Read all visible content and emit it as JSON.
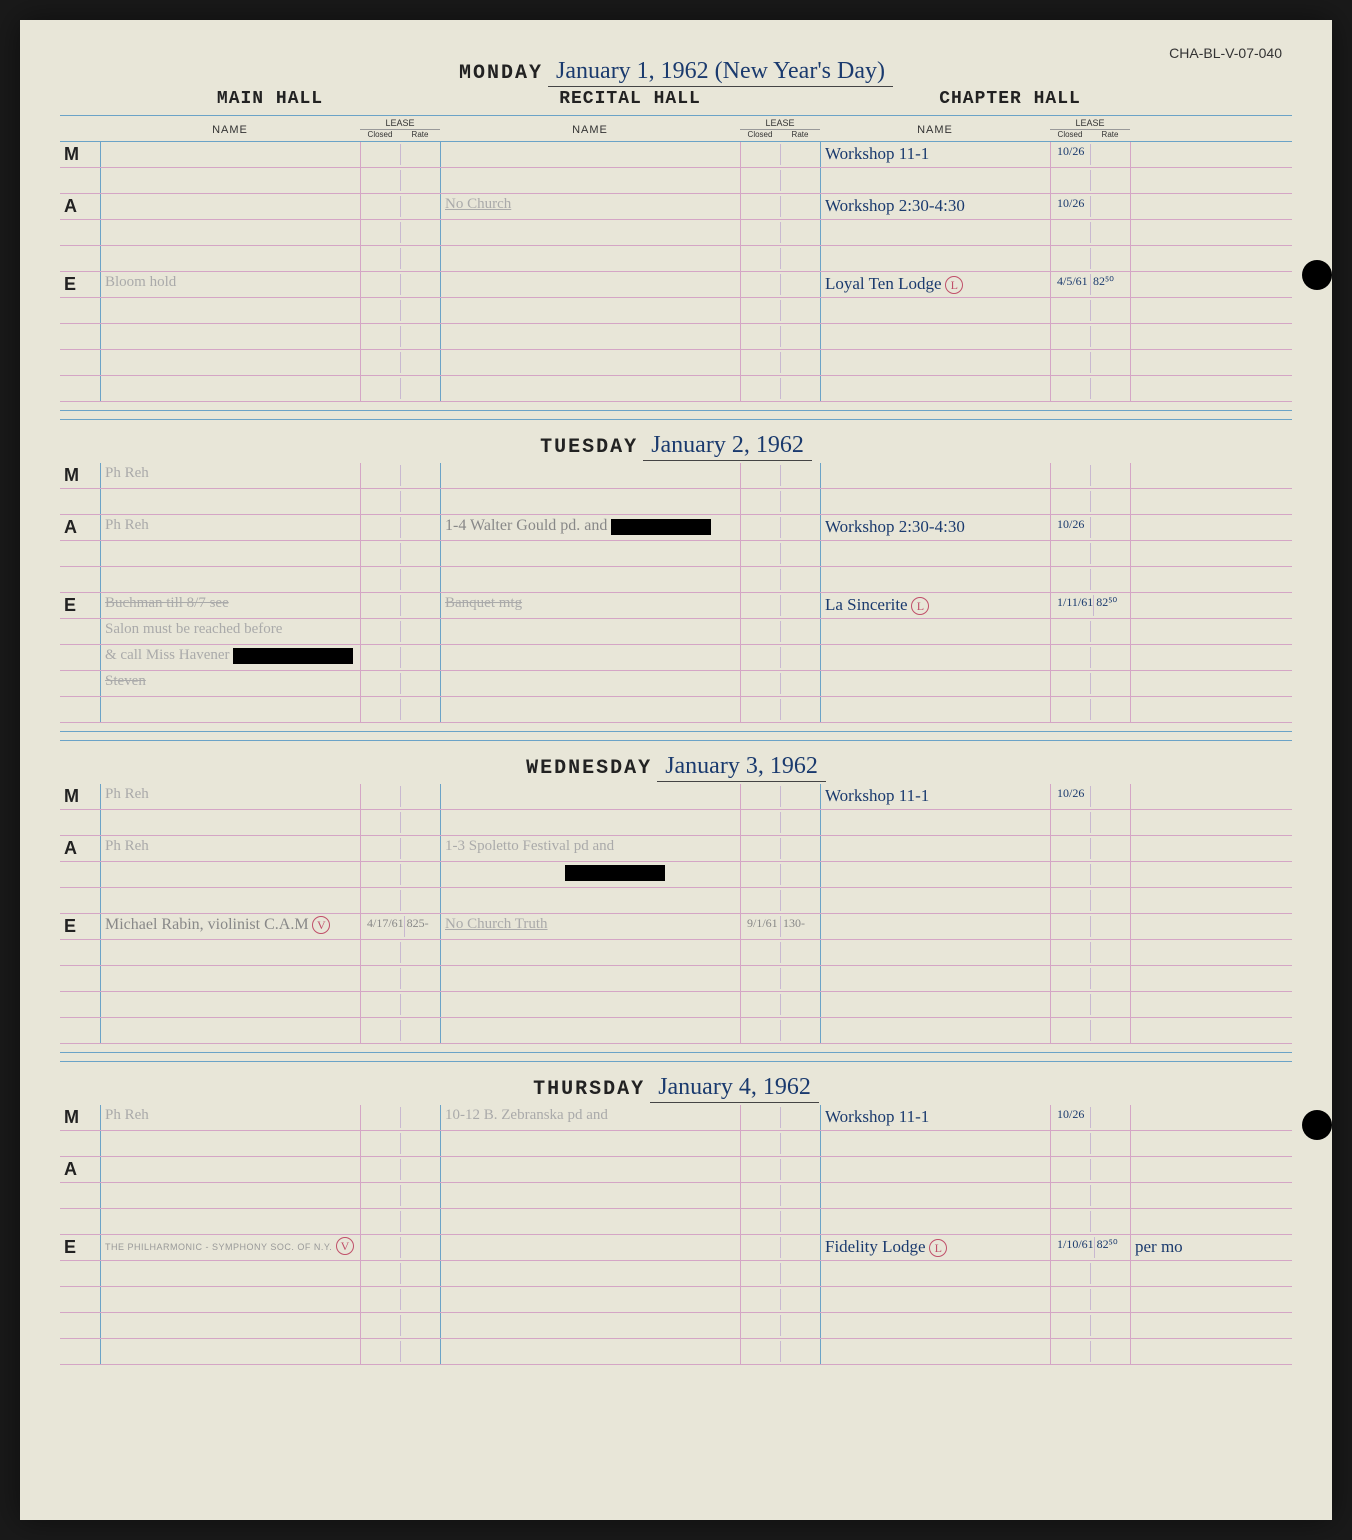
{
  "ref_id": "CHA-BL-V-07-040",
  "halls": {
    "main": "MAIN HALL",
    "recital": "RECITAL HALL",
    "chapter": "CHAPTER HALL"
  },
  "sub": {
    "name": "NAME",
    "lease": "LEASE",
    "closed": "Closed",
    "rate": "Rate"
  },
  "slots": {
    "m": "M",
    "a": "A",
    "e": "E"
  },
  "days": [
    {
      "label": "MONDAY",
      "date": "January 1, 1962 (New Year's Day)",
      "rows": [
        {
          "slot": "M",
          "chap_name": "Workshop 11-1",
          "chap_closed": "10/26"
        },
        {},
        {
          "slot": "A",
          "rec_name": "No Church",
          "rec_style": "faded underline",
          "chap_name": "Workshop 2:30-4:30",
          "chap_closed": "10/26"
        },
        {},
        {},
        {
          "slot": "E",
          "main_name": "Bloom hold",
          "main_style": "faded",
          "chap_name": "Loyal Ten Lodge",
          "chap_mark": "L",
          "chap_closed": "4/5/61",
          "chap_rate": "82⁵⁰"
        },
        {},
        {},
        {},
        {}
      ]
    },
    {
      "label": "TUESDAY",
      "date": "January 2, 1962",
      "rows": [
        {
          "slot": "M",
          "main_name": "Ph Reh",
          "main_style": "faded"
        },
        {},
        {
          "slot": "A",
          "main_name": "Ph Reh",
          "main_style": "faded",
          "rec_name": "1-4 Walter Gould pd. and",
          "rec_style": "pencil",
          "rec_redact": "w100",
          "chap_name": "Workshop 2:30-4:30",
          "chap_closed": "10/26"
        },
        {},
        {},
        {
          "slot": "E",
          "main_name": "Buchman till 8/7 see",
          "main_style": "faded strike",
          "rec_name": "Banquet mtg",
          "rec_style": "faded strike",
          "chap_name": "La Sincerite",
          "chap_mark": "L",
          "chap_closed": "1/11/61",
          "chap_rate": "82⁵⁰"
        },
        {
          "main_name": "Salon must be reached before",
          "main_style": "faded"
        },
        {
          "main_name": "& call Miss Havener",
          "main_style": "faded",
          "main_redact": "w120"
        },
        {
          "main_name": "Steven",
          "main_style": "faded strike"
        },
        {}
      ]
    },
    {
      "label": "WEDNESDAY",
      "date": "January 3, 1962",
      "rows": [
        {
          "slot": "M",
          "main_name": "Ph Reh",
          "main_style": "faded",
          "chap_name": "Workshop 11-1",
          "chap_closed": "10/26"
        },
        {},
        {
          "slot": "A",
          "main_name": "Ph Reh",
          "main_style": "faded",
          "rec_name": "1-3 Spoletto Festival pd and",
          "rec_style": "faded"
        },
        {
          "rec_redact_only": "w100"
        },
        {},
        {
          "slot": "E",
          "main_name": "Michael Rabin, violinist C.A.M",
          "main_style": "pencil",
          "main_mark": "V",
          "main_closed": "4/17/61",
          "main_rate": "825-",
          "rec_name": "No Church Truth",
          "rec_style": "faded underline",
          "rec_closed": "9/1/61",
          "rec_rate": "130-"
        },
        {},
        {},
        {},
        {}
      ]
    },
    {
      "label": "THURSDAY",
      "date": "January 4, 1962",
      "rows": [
        {
          "slot": "M",
          "main_name": "Ph Reh",
          "main_style": "faded",
          "rec_name": "10-12 B. Zebranska pd and",
          "rec_style": "faded",
          "chap_name": "Workshop 11-1",
          "chap_closed": "10/26"
        },
        {},
        {
          "slot": "A"
        },
        {},
        {},
        {
          "slot": "E",
          "main_name": "THE PHILHARMONIC - SYMPHONY SOC. OF N.Y.",
          "main_style": "print",
          "main_mark": "V",
          "chap_name": "Fidelity Lodge",
          "chap_mark": "L",
          "chap_closed": "1/10/61",
          "chap_rate": "82⁵⁰",
          "end_text": "per mo"
        },
        {},
        {},
        {},
        {}
      ]
    }
  ]
}
